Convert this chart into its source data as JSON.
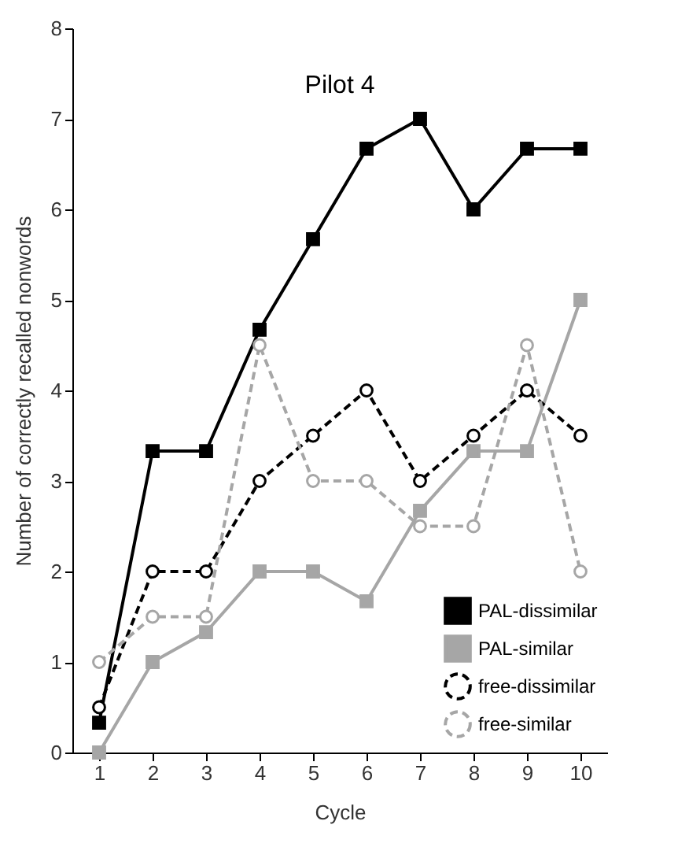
{
  "chart_data": {
    "type": "line",
    "title": "Pilot 4",
    "xlabel": "Cycle",
    "ylabel": "Number of correctly recalled nonwords",
    "categories": [
      "1",
      "2",
      "3",
      "4",
      "5",
      "6",
      "7",
      "8",
      "9",
      "10"
    ],
    "ylim": [
      0,
      8
    ],
    "yticks": [
      0,
      1,
      2,
      3,
      4,
      5,
      6,
      7,
      8
    ],
    "grid": false,
    "legend": "bottom right",
    "series": [
      {
        "name": "PAL-dissimilar",
        "color": "#000000",
        "marker": "square",
        "line_style": "solid",
        "values": [
          0.33,
          3.33,
          3.33,
          4.67,
          5.67,
          6.67,
          7,
          6,
          6.67,
          6.67
        ]
      },
      {
        "name": "PAL-similar",
        "color": "#a6a6a6",
        "marker": "square",
        "line_style": "solid",
        "values": [
          0,
          1,
          1.33,
          2,
          2,
          1.67,
          2.67,
          3.33,
          3.33,
          5
        ]
      },
      {
        "name": "free-dissimilar",
        "color": "#000000",
        "marker": "circle",
        "line_style": "dashed",
        "values": [
          0.5,
          2,
          2,
          3,
          3.5,
          4,
          3,
          3.5,
          4,
          3.5
        ]
      },
      {
        "name": "free-similar",
        "color": "#a6a6a6",
        "marker": "circle",
        "line_style": "dashed",
        "values": [
          1,
          1.5,
          1.5,
          4.5,
          3,
          3,
          2.5,
          2.5,
          4.5,
          2
        ]
      }
    ]
  }
}
